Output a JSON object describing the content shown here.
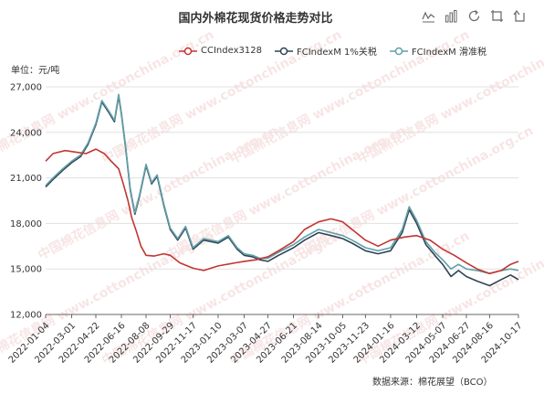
{
  "header": {
    "title": "国内外棉花现货价格走势对比",
    "unit": "单位：元/吨",
    "source": "数据来源：棉花展望（BCO）"
  },
  "toolbar": {
    "icons": [
      "line-chart-icon",
      "bar-chart-icon",
      "restore-icon",
      "zoom-icon",
      "zoom-reset-icon"
    ]
  },
  "chart_data": {
    "type": "line",
    "title": "国内外棉花现货价格走势对比",
    "ylabel": "单位：元/吨",
    "ylim": [
      12000,
      27000
    ],
    "yticks": [
      "27,000",
      "24,000",
      "21,000",
      "18,000",
      "15,000",
      "12,000"
    ],
    "yticks_values": [
      27000,
      24000,
      21000,
      18000,
      15000,
      12000
    ],
    "xlim": [
      "2022-01-04",
      "2024-10-17"
    ],
    "xticks": [
      "2022-01-04",
      "2022-03-01",
      "2022-04-22",
      "2022-06-16",
      "2022-08-08",
      "2022-09-29",
      "2022-11-17",
      "2023-01-10",
      "2023-03-07",
      "2023-04-27",
      "2023-06-21",
      "2023-08-14",
      "2023-10-05",
      "2023-11-23",
      "2024-01-16",
      "2024-03-12",
      "2024-05-07",
      "2024-06-27",
      "2024-08-16",
      "2024-10-17"
    ],
    "grid": true,
    "legend_position": "top",
    "watermark_text": "中国棉花信息网 www.cottonchina.org.cn",
    "series": [
      {
        "name": "CCIndex3128",
        "color": "#c23531",
        "points": [
          [
            "2022-01-04",
            22100
          ],
          [
            "2022-01-20",
            22600
          ],
          [
            "2022-02-15",
            22800
          ],
          [
            "2022-03-10",
            22700
          ],
          [
            "2022-04-01",
            22600
          ],
          [
            "2022-04-22",
            22900
          ],
          [
            "2022-05-10",
            22600
          ],
          [
            "2022-05-25",
            22100
          ],
          [
            "2022-06-10",
            21600
          ],
          [
            "2022-06-20",
            20600
          ],
          [
            "2022-06-30",
            19500
          ],
          [
            "2022-07-08",
            18400
          ],
          [
            "2022-07-18",
            17500
          ],
          [
            "2022-07-28",
            16500
          ],
          [
            "2022-08-08",
            15900
          ],
          [
            "2022-08-25",
            15850
          ],
          [
            "2022-09-15",
            16000
          ],
          [
            "2022-09-29",
            15900
          ],
          [
            "2022-10-20",
            15400
          ],
          [
            "2022-11-17",
            15050
          ],
          [
            "2022-12-10",
            14900
          ],
          [
            "2023-01-10",
            15200
          ],
          [
            "2023-02-15",
            15400
          ],
          [
            "2023-03-07",
            15500
          ],
          [
            "2023-04-01",
            15600
          ],
          [
            "2023-04-27",
            15800
          ],
          [
            "2023-05-20",
            16200
          ],
          [
            "2023-06-21",
            16800
          ],
          [
            "2023-07-15",
            17600
          ],
          [
            "2023-08-14",
            18100
          ],
          [
            "2023-09-10",
            18300
          ],
          [
            "2023-10-05",
            18100
          ],
          [
            "2023-10-25",
            17600
          ],
          [
            "2023-11-23",
            16900
          ],
          [
            "2023-12-20",
            16500
          ],
          [
            "2024-01-16",
            16900
          ],
          [
            "2024-02-15",
            17100
          ],
          [
            "2024-03-12",
            17200
          ],
          [
            "2024-04-10",
            16900
          ],
          [
            "2024-05-07",
            16300
          ],
          [
            "2024-06-01",
            15900
          ],
          [
            "2024-06-27",
            15400
          ],
          [
            "2024-07-20",
            15000
          ],
          [
            "2024-08-16",
            14700
          ],
          [
            "2024-09-10",
            14900
          ],
          [
            "2024-09-30",
            15300
          ],
          [
            "2024-10-17",
            15500
          ]
        ]
      },
      {
        "name": "FCIndexM 1%关税",
        "color": "#2f4554",
        "points": [
          [
            "2022-01-04",
            20400
          ],
          [
            "2022-01-20",
            20900
          ],
          [
            "2022-02-10",
            21500
          ],
          [
            "2022-03-01",
            22000
          ],
          [
            "2022-03-20",
            22400
          ],
          [
            "2022-04-05",
            23200
          ],
          [
            "2022-04-22",
            24500
          ],
          [
            "2022-05-05",
            26000
          ],
          [
            "2022-05-20",
            25300
          ],
          [
            "2022-06-01",
            24700
          ],
          [
            "2022-06-10",
            26400
          ],
          [
            "2022-06-16",
            25200
          ],
          [
            "2022-06-25",
            23000
          ],
          [
            "2022-07-05",
            20200
          ],
          [
            "2022-07-15",
            18600
          ],
          [
            "2022-07-25",
            19800
          ],
          [
            "2022-08-08",
            21800
          ],
          [
            "2022-08-20",
            20600
          ],
          [
            "2022-09-01",
            21100
          ],
          [
            "2022-09-15",
            19200
          ],
          [
            "2022-09-29",
            17600
          ],
          [
            "2022-10-15",
            16900
          ],
          [
            "2022-11-01",
            17700
          ],
          [
            "2022-11-17",
            16300
          ],
          [
            "2022-12-10",
            16900
          ],
          [
            "2023-01-10",
            16700
          ],
          [
            "2023-02-01",
            17100
          ],
          [
            "2023-02-20",
            16300
          ],
          [
            "2023-03-07",
            15900
          ],
          [
            "2023-03-25",
            15800
          ],
          [
            "2023-04-10",
            15600
          ],
          [
            "2023-04-27",
            15500
          ],
          [
            "2023-05-20",
            15900
          ],
          [
            "2023-06-21",
            16400
          ],
          [
            "2023-07-15",
            16900
          ],
          [
            "2023-08-14",
            17400
          ],
          [
            "2023-09-10",
            17200
          ],
          [
            "2023-10-05",
            17000
          ],
          [
            "2023-10-25",
            16700
          ],
          [
            "2023-11-23",
            16200
          ],
          [
            "2023-12-20",
            16000
          ],
          [
            "2024-01-16",
            16200
          ],
          [
            "2024-02-10",
            17400
          ],
          [
            "2024-02-25",
            18900
          ],
          [
            "2024-03-12",
            18000
          ],
          [
            "2024-04-01",
            16600
          ],
          [
            "2024-04-20",
            15900
          ],
          [
            "2024-05-07",
            15300
          ],
          [
            "2024-05-25",
            14500
          ],
          [
            "2024-06-10",
            14900
          ],
          [
            "2024-06-27",
            14500
          ],
          [
            "2024-07-20",
            14200
          ],
          [
            "2024-08-16",
            13900
          ],
          [
            "2024-09-10",
            14300
          ],
          [
            "2024-09-30",
            14600
          ],
          [
            "2024-10-17",
            14300
          ]
        ]
      },
      {
        "name": "FCIndexM 滑准税",
        "color": "#61a0a8",
        "points": [
          [
            "2022-01-04",
            20500
          ],
          [
            "2022-01-20",
            21000
          ],
          [
            "2022-02-10",
            21600
          ],
          [
            "2022-03-01",
            22100
          ],
          [
            "2022-03-20",
            22500
          ],
          [
            "2022-04-05",
            23300
          ],
          [
            "2022-04-22",
            24600
          ],
          [
            "2022-05-05",
            26100
          ],
          [
            "2022-05-20",
            25400
          ],
          [
            "2022-06-01",
            24800
          ],
          [
            "2022-06-10",
            26500
          ],
          [
            "2022-06-16",
            25300
          ],
          [
            "2022-06-25",
            23100
          ],
          [
            "2022-07-05",
            20300
          ],
          [
            "2022-07-15",
            18700
          ],
          [
            "2022-07-25",
            19900
          ],
          [
            "2022-08-08",
            21900
          ],
          [
            "2022-08-20",
            20700
          ],
          [
            "2022-09-01",
            21200
          ],
          [
            "2022-09-15",
            19300
          ],
          [
            "2022-09-29",
            17700
          ],
          [
            "2022-10-15",
            17000
          ],
          [
            "2022-11-01",
            17800
          ],
          [
            "2022-11-17",
            16400
          ],
          [
            "2022-12-10",
            17000
          ],
          [
            "2023-01-10",
            16800
          ],
          [
            "2023-02-01",
            17200
          ],
          [
            "2023-02-20",
            16400
          ],
          [
            "2023-03-07",
            16000
          ],
          [
            "2023-03-25",
            15900
          ],
          [
            "2023-04-10",
            15700
          ],
          [
            "2023-04-27",
            15700
          ],
          [
            "2023-05-20",
            16100
          ],
          [
            "2023-06-21",
            16600
          ],
          [
            "2023-07-15",
            17100
          ],
          [
            "2023-08-14",
            17600
          ],
          [
            "2023-09-10",
            17400
          ],
          [
            "2023-10-05",
            17200
          ],
          [
            "2023-10-25",
            16900
          ],
          [
            "2023-11-23",
            16400
          ],
          [
            "2023-12-20",
            16200
          ],
          [
            "2024-01-16",
            16400
          ],
          [
            "2024-02-10",
            17600
          ],
          [
            "2024-02-25",
            19100
          ],
          [
            "2024-03-12",
            18200
          ],
          [
            "2024-04-01",
            16800
          ],
          [
            "2024-04-20",
            16100
          ],
          [
            "2024-05-07",
            15600
          ],
          [
            "2024-05-25",
            15000
          ],
          [
            "2024-06-10",
            15300
          ],
          [
            "2024-06-27",
            15000
          ],
          [
            "2024-07-20",
            14900
          ],
          [
            "2024-08-16",
            14700
          ],
          [
            "2024-09-10",
            14900
          ],
          [
            "2024-09-30",
            15000
          ],
          [
            "2024-10-17",
            14900
          ]
        ]
      }
    ]
  }
}
